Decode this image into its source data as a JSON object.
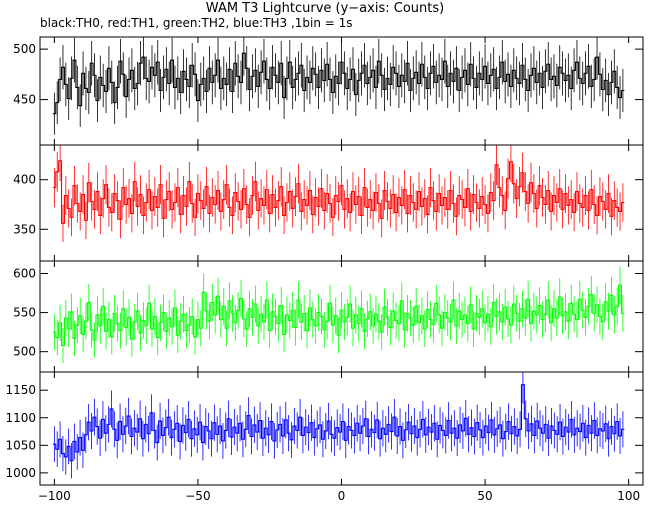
{
  "title": "WAM T3 Lightcurve (y−axis: Counts)",
  "subtitle": "black:TH0, red:TH1, green:TH2, blue:TH3 ,1bin = 1s",
  "chart_data": {
    "type": "line",
    "x_range": [
      -105,
      105
    ],
    "x_ticks": [
      -100,
      -50,
      0,
      50,
      100
    ],
    "x_tick_labels": [
      "−100",
      "−50",
      "0",
      "50",
      "100"
    ],
    "x_start": -100,
    "x_end": 98,
    "bin": 1,
    "panels": [
      {
        "name": "TH0",
        "color": "#000000",
        "ylim": [
          405,
          512
        ],
        "yticks": [
          450,
          500
        ],
        "values": [
          436,
          447,
          470,
          482,
          465,
          451,
          471,
          489,
          462,
          444,
          476,
          461,
          457,
          486,
          474,
          449,
          472,
          464,
          458,
          481,
          467,
          447,
          462,
          488,
          475,
          453,
          470,
          479,
          461,
          466,
          486,
          492,
          471,
          468,
          482,
          474,
          487,
          459,
          472,
          480,
          466,
          489,
          462,
          471,
          457,
          478,
          470,
          463,
          484,
          475,
          449,
          465,
          471,
          458,
          481,
          467,
          474,
          489,
          461,
          471,
          465,
          480,
          458,
          486,
          473,
          467,
          496,
          481,
          460,
          473,
          479,
          463,
          477,
          488,
          470,
          461,
          482,
          474,
          467,
          486,
          452,
          471,
          487,
          462,
          470,
          476,
          484,
          459,
          472,
          467,
          481,
          475,
          462,
          479,
          469,
          485,
          470,
          457,
          473,
          466,
          487,
          476,
          461,
          470,
          480,
          455,
          469,
          476,
          484,
          466,
          472,
          479,
          462,
          488,
          474,
          460,
          471,
          465,
          482,
          476,
          463,
          474,
          468,
          486,
          459,
          471,
          477,
          466,
          485,
          472,
          461,
          476,
          483,
          467,
          474,
          470,
          488,
          463,
          476,
          468,
          481,
          459,
          472,
          479,
          465,
          485,
          471,
          462,
          476,
          470,
          483,
          466,
          474,
          480,
          461,
          472,
          487,
          468,
          475,
          463,
          479,
          471,
          466,
          484,
          470,
          459,
          474,
          481,
          467,
          476,
          462,
          478,
          485,
          470,
          473,
          464,
          482,
          476,
          469,
          474,
          461,
          479,
          487,
          471,
          466,
          476,
          483,
          463,
          470,
          492,
          475,
          460,
          469,
          455,
          467,
          478,
          462,
          452,
          459
        ]
      },
      {
        "name": "TH1",
        "color": "#ff0000",
        "ylim": [
          318,
          435
        ],
        "yticks": [
          350,
          400
        ],
        "values": [
          392,
          408,
          419,
          356,
          384,
          371,
          362,
          394,
          376,
          368,
          385,
          359,
          397,
          378,
          370,
          388,
          364,
          381,
          395,
          372,
          367,
          386,
          379,
          360,
          392,
          375,
          381,
          366,
          398,
          373,
          385,
          364,
          377,
          390,
          369,
          383,
          372,
          395,
          361,
          380,
          388,
          370,
          377,
          392,
          365,
          384,
          373,
          398,
          376,
          362,
          386,
          379,
          371,
          393,
          366,
          382,
          375,
          389,
          368,
          380,
          395,
          372,
          364,
          387,
          378,
          370,
          391,
          375,
          362,
          384,
          398,
          369,
          381,
          374,
          390,
          366,
          385,
          372,
          379,
          393,
          364,
          377,
          388,
          371,
          383,
          396,
          368,
          380,
          374,
          389,
          365,
          382,
          373,
          391,
          369,
          386,
          376,
          362,
          384,
          378,
          394,
          370,
          381,
          367,
          388,
          375,
          383,
          364,
          392,
          372,
          380,
          369,
          387,
          376,
          361,
          389,
          378,
          371,
          385,
          367,
          382,
          374,
          390,
          366,
          384,
          377,
          370,
          388,
          373,
          381,
          365,
          392,
          379,
          368,
          386,
          374,
          382,
          370,
          389,
          376,
          363,
          384,
          380,
          372,
          391,
          368,
          385,
          377,
          371,
          383,
          375,
          366,
          387,
          379,
          415,
          392,
          384,
          369,
          401,
          418,
          396,
          381,
          393,
          407,
          388,
          376,
          397,
          386,
          371,
          394,
          382,
          375,
          389,
          368,
          384,
          377,
          391,
          370,
          386,
          374,
          380,
          367,
          388,
          376,
          372,
          384,
          369,
          390,
          375,
          364,
          383,
          378,
          370,
          386,
          363,
          379,
          372,
          368,
          377
        ]
      },
      {
        "name": "TH2",
        "color": "#00ff00",
        "ylim": [
          474,
          616
        ],
        "yticks": [
          500,
          550,
          600
        ],
        "values": [
          525,
          518,
          537,
          508,
          543,
          529,
          551,
          517,
          534,
          546,
          522,
          539,
          563,
          528,
          515,
          547,
          533,
          558,
          526,
          541,
          519,
          549,
          536,
          527,
          555,
          531,
          544,
          516,
          538,
          552,
          524,
          540,
          533,
          562,
          529,
          545,
          518,
          537,
          550,
          526,
          543,
          532,
          556,
          521,
          539,
          548,
          527,
          534,
          545,
          519,
          541,
          530,
          576,
          552,
          539,
          563,
          547,
          571,
          541,
          558,
          530,
          565,
          549,
          537,
          553,
          568,
          542,
          529,
          555,
          544,
          561,
          533,
          548,
          538,
          566,
          527,
          551,
          545,
          536,
          559,
          522,
          547,
          540,
          553,
          531,
          566,
          538,
          549,
          527,
          556,
          541,
          533,
          550,
          545,
          528,
          539,
          562,
          534,
          546,
          521,
          553,
          538,
          544,
          561,
          530,
          547,
          536,
          555,
          526,
          542,
          551,
          533,
          548,
          539,
          525,
          557,
          544,
          531,
          552,
          540,
          536,
          565,
          528,
          549,
          543,
          534,
          558,
          537,
          546,
          529,
          554,
          541,
          535,
          562,
          547,
          530,
          550,
          543,
          538,
          566,
          533,
          552,
          541,
          547,
          536,
          560,
          529,
          549,
          544,
          555,
          537,
          548,
          532,
          563,
          545,
          551,
          538,
          557,
          542,
          534,
          561,
          549,
          539,
          555,
          543,
          567,
          536,
          552,
          547,
          559,
          541,
          548,
          566,
          537,
          555,
          543,
          570,
          546,
          551,
          539,
          562,
          548,
          541,
          567,
          553,
          544,
          558,
          573,
          549,
          560,
          545,
          538,
          564,
          552,
          572,
          547,
          558,
          585,
          549
        ]
      },
      {
        "name": "TH3",
        "color": "#0000ff",
        "ylim": [
          978,
          1183
        ],
        "yticks": [
          1000,
          1050,
          1100,
          1150
        ],
        "values": [
          1052,
          1043,
          1061,
          1035,
          1029,
          1048,
          1022,
          1057,
          1038,
          1064,
          1041,
          1069,
          1092,
          1076,
          1101,
          1084,
          1063,
          1097,
          1072,
          1088,
          1116,
          1079,
          1059,
          1093,
          1070,
          1085,
          1103,
          1066,
          1081,
          1074,
          1098,
          1062,
          1088,
          1071,
          1109,
          1077,
          1055,
          1094,
          1068,
          1082,
          1101,
          1064,
          1079,
          1090,
          1057,
          1086,
          1073,
          1097,
          1062,
          1080,
          1069,
          1092,
          1055,
          1084,
          1076,
          1062,
          1091,
          1070,
          1085,
          1058,
          1077,
          1098,
          1065,
          1083,
          1072,
          1090,
          1061,
          1079,
          1104,
          1066,
          1087,
          1074,
          1095,
          1063,
          1081,
          1069,
          1093,
          1058,
          1078,
          1088,
          1067,
          1096,
          1072,
          1060,
          1085,
          1077,
          1101,
          1068,
          1083,
          1073,
          1091,
          1064,
          1080,
          1087,
          1061,
          1076,
          1094,
          1070,
          1063,
          1082,
          1074,
          1093,
          1059,
          1084,
          1077,
          1068,
          1090,
          1072,
          1085,
          1098,
          1066,
          1079,
          1073,
          1096,
          1062,
          1081,
          1070,
          1088,
          1075,
          1101,
          1067,
          1084,
          1059,
          1078,
          1092,
          1071,
          1085,
          1064,
          1079,
          1097,
          1069,
          1083,
          1074,
          1090,
          1061,
          1086,
          1077,
          1068,
          1095,
          1072,
          1081,
          1063,
          1087,
          1076,
          1099,
          1070,
          1082,
          1066,
          1091,
          1078,
          1064,
          1085,
          1073,
          1096,
          1069,
          1080,
          1087,
          1062,
          1075,
          1093,
          1071,
          1084,
          1067,
          1079,
          1160,
          1098,
          1076,
          1089,
          1068,
          1094,
          1081,
          1072,
          1088,
          1063,
          1085,
          1077,
          1070,
          1092,
          1066,
          1083,
          1074,
          1097,
          1069,
          1081,
          1075,
          1090,
          1064,
          1086,
          1072,
          1095,
          1068,
          1080,
          1076,
          1089,
          1062,
          1084,
          1071,
          1093,
          1067,
          1079
        ]
      }
    ]
  }
}
